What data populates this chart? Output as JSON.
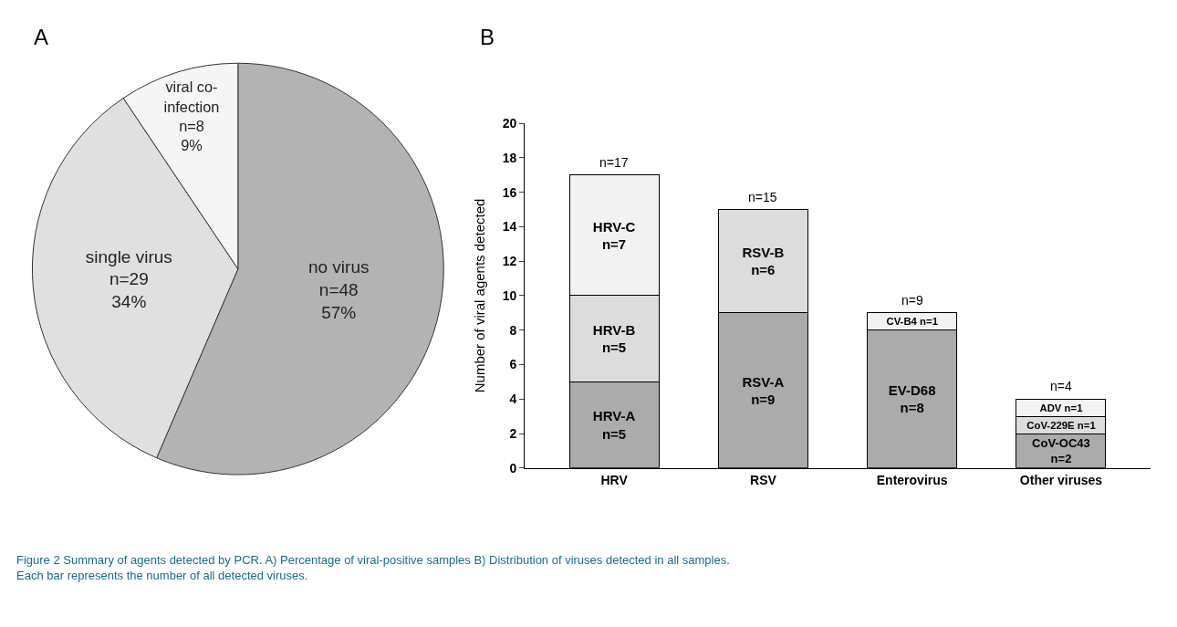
{
  "chart_data": [
    {
      "type": "pie",
      "title": "A",
      "categories": [
        "no virus",
        "single virus",
        "viral co-\ninfection"
      ],
      "values": [
        48,
        29,
        8
      ],
      "colors": [
        "#b3b3b3",
        "#e0e0e0",
        "#f5f5f5"
      ],
      "value_labels": [
        "n=48\n57%",
        "n=29\n34%",
        "n=8\n9%"
      ],
      "annotations": [
        "Figure 2 Summary of agents detected by PCR. A) Percentage of viral-positive samples B) Distribution of viruses detected in all samples.\nEach bar represents the number of all detected viruses."
      ]
    },
    {
      "type": "bar",
      "title": "B",
      "stacked": true,
      "categories": [
        "HRV",
        "RSV",
        "Enterovirus",
        "Other viruses"
      ],
      "ylabel": "Number of viral agents detected",
      "ylim": [
        0,
        20
      ],
      "yticks": [
        0,
        2,
        4,
        6,
        8,
        10,
        12,
        14,
        16,
        18,
        20
      ],
      "series": [
        {
          "colors": [
            "#ababab",
            "#ababab",
            "#ababab",
            "#ababab"
          ],
          "values": [
            5,
            9,
            8,
            2
          ],
          "value_labels": [
            "HRV-A\nn=5",
            "RSV-A\nn=9",
            "EV-D68\nn=8",
            "CoV-OC43\nn=2"
          ]
        },
        {
          "colors": [
            "#dcdcdc",
            "#dcdcdc",
            "#f2f2f2",
            "#dcdcdc"
          ],
          "values": [
            5,
            6,
            1,
            1
          ],
          "value_labels": [
            "HRV-B\nn=5",
            "RSV-B\nn=6",
            "CV-B4 n=1",
            "CoV-229E n=1"
          ]
        },
        {
          "colors": [
            "#f2f2f2",
            "#f2f2f2",
            "#f2f2f2",
            "#f2f2f2"
          ],
          "values": [
            7,
            null,
            null,
            1
          ],
          "value_labels": [
            "HRV-C\nn=7",
            null,
            null,
            "ADV n=1"
          ]
        }
      ],
      "totals": [
        "n=17",
        "n=15",
        "n=9",
        "n=4"
      ]
    }
  ]
}
